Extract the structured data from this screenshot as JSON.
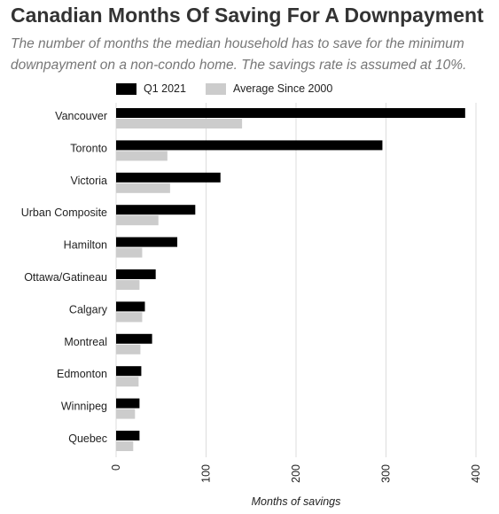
{
  "title": "Canadian Months Of Saving For A Downpayment",
  "subtitle": "The number of months the median household has to save for the minimum downpayment on a non-condo home. The savings rate is assumed at 10%.",
  "colors": {
    "q1_2021": "#000000",
    "average": "#cccccc",
    "grid": "#dddddd"
  },
  "chart_data": {
    "type": "bar",
    "orientation": "horizontal",
    "title": "Canadian Months Of Saving For A Downpayment",
    "xlabel": "Months of savings",
    "ylabel": "",
    "xlim": [
      0,
      400
    ],
    "xticks": [
      0,
      100,
      200,
      300,
      400
    ],
    "grid": true,
    "legend_position": "top-left",
    "categories": [
      "Vancouver",
      "Toronto",
      "Victoria",
      "Urban Composite",
      "Hamilton",
      "Ottawa/Gatineau",
      "Calgary",
      "Montreal",
      "Edmonton",
      "Winnipeg",
      "Quebec"
    ],
    "series": [
      {
        "name": "Q1 2021",
        "values": [
          388,
          296,
          116,
          88,
          68,
          44,
          32,
          40,
          28,
          26,
          26
        ]
      },
      {
        "name": "Average Since 2000",
        "values": [
          140,
          57,
          60,
          47,
          29,
          26,
          29,
          27,
          25,
          21,
          19
        ]
      }
    ]
  }
}
